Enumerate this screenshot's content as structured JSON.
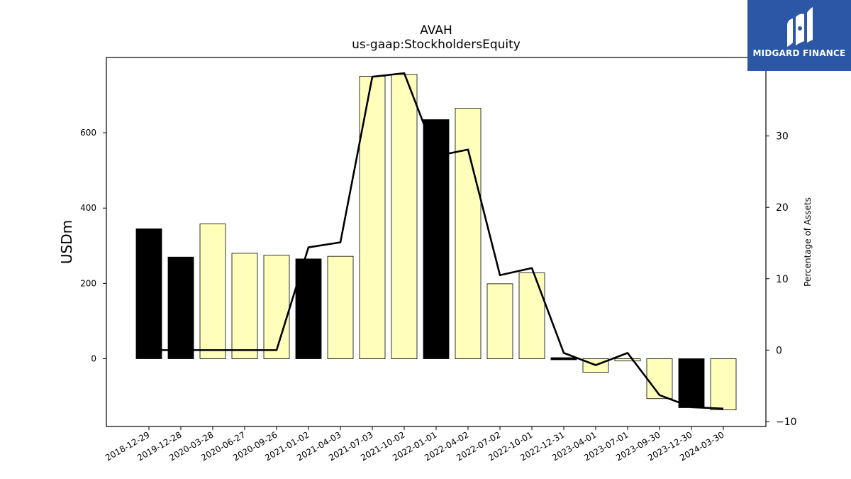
{
  "chart_data": {
    "type": "bar",
    "title": "AVAH",
    "subtitle": "us-gaap:StockholdersEquity",
    "ylabel": "USDm",
    "y2label": "Percentage of Assets",
    "ylim": [
      -180,
      800
    ],
    "y2lim": [
      -10.7,
      41
    ],
    "yticks": [
      0,
      200,
      400,
      600
    ],
    "y2ticks": [
      -10,
      0,
      10,
      20,
      30
    ],
    "categories": [
      "2018-12-29",
      "2019-12-28",
      "2020-03-28",
      "2020-06-27",
      "2020-09-26",
      "2021-01-02",
      "2021-04-03",
      "2021-07-03",
      "2021-10-02",
      "2022-01-01",
      "2022-04-02",
      "2022-07-02",
      "2022-10-01",
      "2022-12-31",
      "2023-04-01",
      "2023-07-01",
      "2023-09-30",
      "2023-12-30",
      "2024-03-30"
    ],
    "series": [
      {
        "kind": "bar",
        "values": [
          345,
          270,
          358,
          280,
          275,
          265,
          272,
          750,
          755,
          635,
          665,
          199,
          228,
          -3,
          -36,
          -6,
          -106,
          -130,
          -136
        ],
        "colors": [
          "#000000",
          "#000000",
          "#ffffbb",
          "#ffffbb",
          "#ffffbb",
          "#000000",
          "#ffffbb",
          "#ffffbb",
          "#ffffbb",
          "#000000",
          "#ffffbb",
          "#ffffbb",
          "#ffffbb",
          "#000000",
          "#ffffbb",
          "#ffffbb",
          "#ffffbb",
          "#000000",
          "#ffffbb"
        ]
      },
      {
        "kind": "line",
        "axis": "right",
        "values": [
          0,
          0,
          0,
          0,
          0,
          14.4,
          15.1,
          38.3,
          38.8,
          27.2,
          28.1,
          10.5,
          11.5,
          -0.4,
          -2.1,
          -0.4,
          -6.3,
          -8.0,
          -8.2
        ],
        "color": "#000000"
      }
    ]
  },
  "logo": {
    "text": "MIDGARD FINANCE",
    "background": "#2b57a6",
    "icon": "midgard-logo-icon"
  }
}
